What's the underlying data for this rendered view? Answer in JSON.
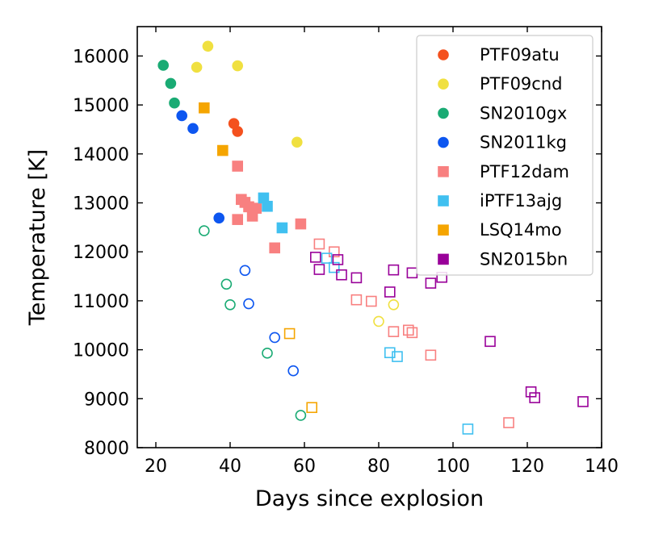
{
  "chart_data": {
    "type": "scatter",
    "title": "",
    "xlabel": "Days since explosion",
    "ylabel": "Temperature [K]",
    "xlim": [
      15,
      140
    ],
    "ylim": [
      8000,
      16600
    ],
    "xticks": [
      20,
      40,
      60,
      80,
      100,
      120,
      140
    ],
    "yticks": [
      8000,
      9000,
      10000,
      11000,
      12000,
      13000,
      14000,
      15000,
      16000
    ],
    "xtick_labels": [
      "20",
      "40",
      "60",
      "80",
      "100",
      "120",
      "140"
    ],
    "ytick_labels": [
      "8000",
      "9000",
      "10000",
      "11000",
      "12000",
      "13000",
      "14000",
      "15000",
      "16000"
    ],
    "legend_position": "top-right",
    "series": [
      {
        "name": "PTF09atu",
        "color": "#f4511e",
        "marker": "circle",
        "filled": [
          [
            41.0,
            14620
          ],
          [
            42.0,
            14460
          ]
        ],
        "open": []
      },
      {
        "name": "PTF09cnd",
        "color": "#f0e040",
        "marker": "circle",
        "filled": [
          [
            31.0,
            15770
          ],
          [
            34.0,
            16200
          ],
          [
            42.0,
            15800
          ],
          [
            58.0,
            14240
          ]
        ],
        "open": [
          [
            84.0,
            10920
          ],
          [
            80.0,
            10580
          ]
        ]
      },
      {
        "name": "SN2010gx",
        "color": "#1aab74",
        "marker": "circle",
        "filled": [
          [
            22.0,
            15810
          ],
          [
            24.0,
            15440
          ],
          [
            25.0,
            15040
          ]
        ],
        "open": [
          [
            33.0,
            12430
          ],
          [
            39.0,
            11340
          ],
          [
            40.0,
            10920
          ],
          [
            50.0,
            9930
          ],
          [
            59.0,
            8660
          ]
        ]
      },
      {
        "name": "SN2011kg",
        "color": "#0d56f0",
        "marker": "circle",
        "filled": [
          [
            27.0,
            14780
          ],
          [
            30.0,
            14520
          ],
          [
            37.0,
            12690
          ]
        ],
        "open": [
          [
            44.0,
            11620
          ],
          [
            45.0,
            10940
          ],
          [
            52.0,
            10250
          ],
          [
            57.0,
            9570
          ]
        ]
      },
      {
        "name": "PTF12dam",
        "color": "#f88080",
        "marker": "square",
        "filled": [
          [
            42.0,
            13750
          ],
          [
            43.0,
            13070
          ],
          [
            44.0,
            13010
          ],
          [
            45.0,
            12920
          ],
          [
            47.0,
            12890
          ],
          [
            46.0,
            12730
          ],
          [
            42.0,
            12660
          ],
          [
            59.0,
            12570
          ],
          [
            52.0,
            12080
          ]
        ],
        "open": [
          [
            64.0,
            12160
          ],
          [
            68.0,
            12000
          ],
          [
            74.0,
            11020
          ],
          [
            78.0,
            10990
          ],
          [
            84.0,
            10370
          ],
          [
            88.0,
            10400
          ],
          [
            89.0,
            10350
          ],
          [
            94.0,
            9890
          ],
          [
            115.0,
            8510
          ]
        ]
      },
      {
        "name": "iPTF13ajg",
        "color": "#40c0f0",
        "marker": "square",
        "filled": [
          [
            49.0,
            13100
          ],
          [
            50.0,
            12930
          ],
          [
            54.0,
            12490
          ]
        ],
        "open": [
          [
            66.0,
            11870
          ],
          [
            68.0,
            11680
          ],
          [
            83.0,
            9940
          ],
          [
            85.0,
            9860
          ],
          [
            104.0,
            8380
          ]
        ]
      },
      {
        "name": "LSQ14mo",
        "color": "#f5a500",
        "marker": "square",
        "filled": [
          [
            33.0,
            14940
          ],
          [
            38.0,
            14070
          ]
        ],
        "open": [
          [
            56.0,
            10330
          ],
          [
            62.0,
            8820
          ]
        ]
      },
      {
        "name": "SN2015bn",
        "color": "#990099",
        "marker": "square",
        "filled": [],
        "open": [
          [
            63.0,
            11890
          ],
          [
            64.0,
            11640
          ],
          [
            69.0,
            11840
          ],
          [
            70.0,
            11530
          ],
          [
            74.0,
            11470
          ],
          [
            84.0,
            11630
          ],
          [
            83.0,
            11180
          ],
          [
            89.0,
            11570
          ],
          [
            94.0,
            11360
          ],
          [
            97.0,
            11480
          ],
          [
            110.0,
            10170
          ],
          [
            121.0,
            9140
          ],
          [
            122.0,
            9020
          ],
          [
            135.0,
            8940
          ]
        ]
      }
    ]
  }
}
